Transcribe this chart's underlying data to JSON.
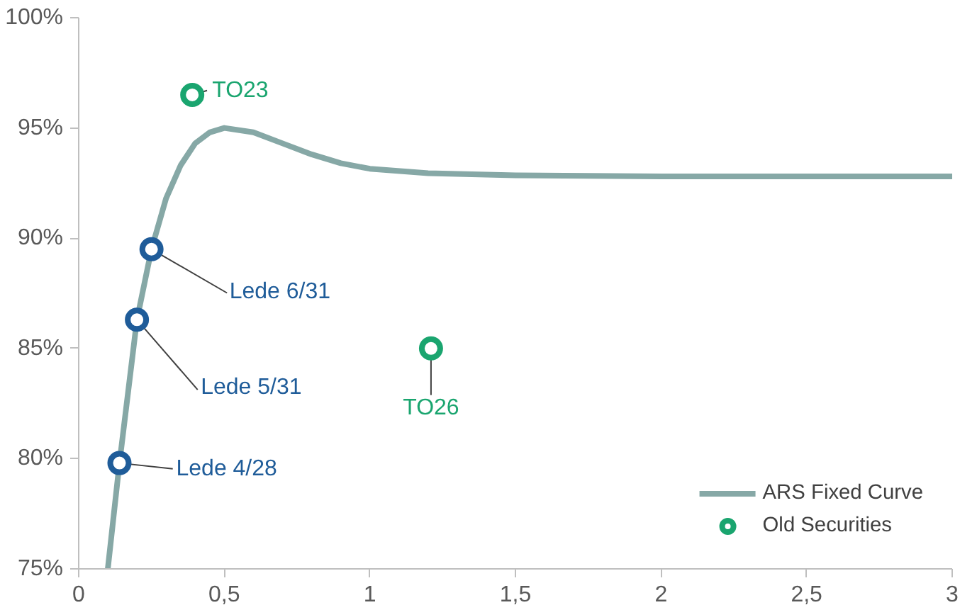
{
  "chart_data": {
    "type": "line",
    "xlim": [
      0,
      3
    ],
    "xticks": [
      {
        "value": 0,
        "label": "0"
      },
      {
        "value": 0.5,
        "label": "0,5"
      },
      {
        "value": 1,
        "label": "1"
      },
      {
        "value": 1.5,
        "label": "1,5"
      },
      {
        "value": 2,
        "label": "2"
      },
      {
        "value": 2.5,
        "label": "2,5"
      },
      {
        "value": 3,
        "label": "3"
      }
    ],
    "ylim": [
      75,
      100
    ],
    "yticks": [
      {
        "value": 75,
        "label": "75%"
      },
      {
        "value": 80,
        "label": "80%"
      },
      {
        "value": 85,
        "label": "85%"
      },
      {
        "value": 90,
        "label": "90%"
      },
      {
        "value": 95,
        "label": "95%"
      },
      {
        "value": 100,
        "label": "100%"
      }
    ],
    "grid": false,
    "legend": "bottom right",
    "line_style": "solid",
    "series": [
      {
        "name": "ARS Fixed Curve",
        "color": "#86a8a6",
        "x": [
          0.1,
          0.14,
          0.2,
          0.25,
          0.3,
          0.35,
          0.4,
          0.45,
          0.5,
          0.6,
          0.7,
          0.8,
          0.9,
          1.0,
          1.2,
          1.5,
          2.0,
          2.5,
          3.0
        ],
        "values": [
          75,
          79.8,
          86.3,
          89.5,
          91.8,
          93.3,
          94.3,
          94.8,
          95.0,
          94.8,
          94.3,
          93.8,
          93.4,
          93.15,
          92.95,
          92.85,
          92.8,
          92.8,
          92.8
        ]
      },
      {
        "name": "Old Securities",
        "type": "scatter",
        "marker": "circle",
        "color": "#1aa56f",
        "x": [
          0.39,
          1.21
        ],
        "values": [
          96.5,
          85.0
        ]
      },
      {
        "type": "scatter",
        "marker": "circle",
        "color": "#1f5c99",
        "x": [
          0.14,
          0.2,
          0.25
        ],
        "values": [
          79.8,
          86.3,
          89.5
        ]
      }
    ],
    "annotations": [
      {
        "text": "TO23",
        "x": 0.39,
        "y": 96.5
      },
      {
        "text": "Lede 6/31",
        "x": 0.25,
        "y": 89.5
      },
      {
        "text": "Lede 5/31",
        "x": 0.2,
        "y": 86.3
      },
      {
        "text": "TO26",
        "x": 1.21,
        "y": 85.0
      },
      {
        "text": "Lede 4/28",
        "x": 0.14,
        "y": 79.8
      }
    ]
  }
}
